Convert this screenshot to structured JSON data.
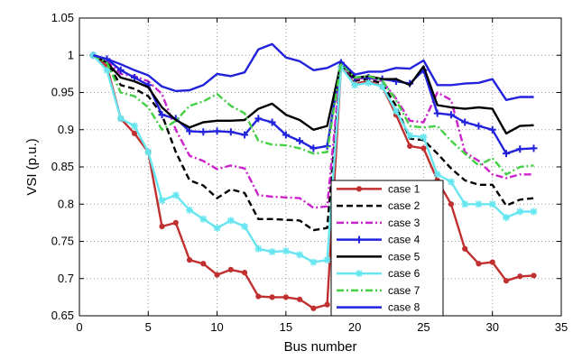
{
  "chart_data": {
    "type": "line",
    "xlabel": "Bus number",
    "ylabel": "VSI (p.u.)",
    "xlim": [
      0,
      35
    ],
    "ylim": [
      0.65,
      1.05
    ],
    "xticks": [
      "0",
      "5",
      "10",
      "15",
      "20",
      "25",
      "30",
      "35"
    ],
    "yticks": [
      "0.65",
      "0.7",
      "0.75",
      "0.8",
      "0.85",
      "0.9",
      "0.95",
      "1",
      "1.05"
    ],
    "grid": "dotted",
    "legend_position": "lower-center-right",
    "x": [
      1,
      2,
      3,
      4,
      5,
      6,
      7,
      8,
      9,
      10,
      11,
      12,
      13,
      14,
      15,
      16,
      17,
      18,
      19,
      20,
      21,
      22,
      23,
      24,
      25,
      26,
      27,
      28,
      29,
      30,
      31,
      32,
      33
    ],
    "series": [
      {
        "name": "case 1",
        "color": "#c03030",
        "dash": "solid",
        "marker": "dot",
        "values": [
          1.0,
          0.985,
          0.915,
          0.895,
          0.87,
          0.77,
          0.775,
          0.725,
          0.72,
          0.705,
          0.712,
          0.708,
          0.676,
          0.675,
          0.675,
          0.672,
          0.66,
          0.665,
          0.985,
          0.962,
          0.965,
          0.958,
          0.92,
          0.878,
          0.875,
          0.832,
          0.8,
          0.74,
          0.72,
          0.722,
          0.697,
          0.703,
          0.704
        ]
      },
      {
        "name": "case 2",
        "color": "#000000",
        "dash": "dashed",
        "marker": "none",
        "values": [
          1.0,
          0.99,
          0.96,
          0.955,
          0.945,
          0.92,
          0.87,
          0.832,
          0.825,
          0.808,
          0.82,
          0.815,
          0.78,
          0.78,
          0.779,
          0.778,
          0.765,
          0.768,
          0.988,
          0.966,
          0.968,
          0.962,
          0.932,
          0.888,
          0.886,
          0.868,
          0.848,
          0.832,
          0.826,
          0.826,
          0.798,
          0.806,
          0.808
        ]
      },
      {
        "name": "case 3",
        "color": "#cc22cc",
        "dash": "dashdot",
        "marker": "none",
        "values": [
          1.0,
          0.992,
          0.975,
          0.972,
          0.965,
          0.948,
          0.9,
          0.865,
          0.858,
          0.847,
          0.852,
          0.848,
          0.812,
          0.81,
          0.809,
          0.808,
          0.795,
          0.797,
          0.99,
          0.968,
          0.97,
          0.965,
          0.942,
          0.912,
          0.91,
          0.95,
          0.94,
          0.87,
          0.858,
          0.84,
          0.835,
          0.84,
          0.84
        ]
      },
      {
        "name": "case 4",
        "color": "#2222dd",
        "dash": "solid",
        "marker": "plus",
        "values": [
          1.0,
          0.995,
          0.98,
          0.97,
          0.96,
          0.92,
          0.915,
          0.898,
          0.897,
          0.898,
          0.897,
          0.893,
          0.915,
          0.91,
          0.893,
          0.885,
          0.875,
          0.878,
          0.99,
          0.97,
          0.97,
          0.968,
          0.965,
          0.962,
          0.98,
          0.922,
          0.92,
          0.91,
          0.905,
          0.9,
          0.868,
          0.874,
          0.875
        ]
      },
      {
        "name": "case 5",
        "color": "#000000",
        "dash": "solid",
        "marker": "none",
        "values": [
          1.0,
          0.99,
          0.97,
          0.965,
          0.957,
          0.93,
          0.913,
          0.903,
          0.91,
          0.912,
          0.912,
          0.913,
          0.928,
          0.935,
          0.92,
          0.913,
          0.9,
          0.905,
          0.99,
          0.97,
          0.972,
          0.968,
          0.968,
          0.96,
          0.985,
          0.933,
          0.93,
          0.928,
          0.93,
          0.928,
          0.895,
          0.905,
          0.906
        ]
      },
      {
        "name": "case 6",
        "color": "#66e6f0",
        "dash": "solid",
        "marker": "star",
        "values": [
          1.0,
          0.98,
          0.915,
          0.905,
          0.87,
          0.805,
          0.812,
          0.792,
          0.78,
          0.768,
          0.778,
          0.77,
          0.74,
          0.736,
          0.737,
          0.732,
          0.722,
          0.725,
          0.984,
          0.96,
          0.963,
          0.958,
          0.925,
          0.892,
          0.89,
          0.84,
          0.83,
          0.8,
          0.8,
          0.8,
          0.782,
          0.79,
          0.79
        ]
      },
      {
        "name": "case 7",
        "color": "#44d044",
        "dash": "dashdot",
        "marker": "none",
        "values": [
          1.0,
          0.99,
          0.95,
          0.945,
          0.93,
          0.9,
          0.912,
          0.932,
          0.938,
          0.948,
          0.932,
          0.922,
          0.885,
          0.88,
          0.879,
          0.875,
          0.868,
          0.87,
          0.99,
          0.97,
          0.972,
          0.966,
          0.94,
          0.905,
          0.903,
          0.905,
          0.885,
          0.868,
          0.852,
          0.862,
          0.84,
          0.85,
          0.852
        ]
      },
      {
        "name": "case 8",
        "color": "#2222dd",
        "dash": "solid",
        "marker": "none",
        "values": [
          1.0,
          0.995,
          0.988,
          0.98,
          0.973,
          0.958,
          0.952,
          0.953,
          0.96,
          0.975,
          0.972,
          0.977,
          1.008,
          1.015,
          0.997,
          0.992,
          0.98,
          0.983,
          0.992,
          0.974,
          0.978,
          0.978,
          0.983,
          0.982,
          0.993,
          0.96,
          0.96,
          0.962,
          0.963,
          0.968,
          0.94,
          0.944,
          0.944
        ]
      }
    ]
  }
}
